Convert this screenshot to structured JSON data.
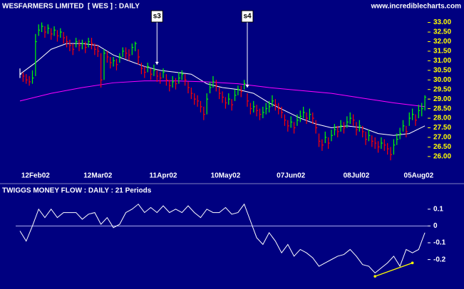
{
  "chart_data": [
    {
      "type": "ohlc",
      "title": "WESFARMERS LIMITED  [ WES ] : DAILY",
      "source": "www.incrediblecharts.com",
      "up_color": "#00ff00",
      "down_color": "#ff0000",
      "flat_color": "#ffffff",
      "categories": [
        null,
        null,
        null,
        null,
        null,
        "12Feb02",
        null,
        null,
        null,
        null,
        null,
        null,
        null,
        null,
        null,
        null,
        null,
        null,
        null,
        null,
        null,
        null,
        null,
        null,
        null,
        "12Mar02",
        null,
        null,
        null,
        null,
        null,
        null,
        null,
        null,
        null,
        null,
        null,
        null,
        null,
        null,
        null,
        null,
        null,
        null,
        null,
        null,
        "11Apr02",
        null,
        null,
        null,
        null,
        null,
        null,
        null,
        null,
        null,
        null,
        null,
        null,
        null,
        null,
        null,
        null,
        null,
        null,
        null,
        "10May02",
        null,
        null,
        null,
        null,
        null,
        null,
        null,
        null,
        null,
        null,
        null,
        null,
        null,
        null,
        null,
        null,
        null,
        null,
        null,
        null,
        "07Jun02",
        null,
        null,
        null,
        null,
        null,
        null,
        null,
        null,
        null,
        null,
        null,
        null,
        null,
        null,
        null,
        null,
        null,
        null,
        null,
        null,
        "08Jul02",
        null,
        null,
        null,
        null,
        null,
        null,
        null,
        null,
        null,
        null,
        null,
        null,
        null,
        null,
        null,
        null,
        null,
        null,
        null,
        "05Aug02",
        null,
        null
      ],
      "high": [
        30.6,
        30.4,
        30.3,
        30.2,
        30.5,
        32.4,
        32.9,
        33.0,
        32.8,
        32.9,
        32.7,
        32.8,
        32.6,
        32.7,
        32.5,
        32.3,
        32.1,
        31.9,
        32.2,
        32.1,
        32.1,
        32.0,
        32.2,
        32.2,
        31.9,
        31.8,
        31.4,
        31.6,
        31.5,
        31.2,
        31.2,
        31.1,
        31.4,
        31.7,
        31.7,
        31.6,
        31.9,
        32.0,
        31.6,
        30.9,
        30.7,
        30.9,
        30.6,
        30.8,
        30.5,
        30.4,
        30.6,
        30.3,
        30.0,
        30.2,
        30.1,
        30.4,
        30.5,
        30.3,
        29.9,
        29.6,
        29.3,
        29.2,
        28.9,
        28.6,
        29.3,
        29.9,
        30.2,
        30.0,
        29.6,
        29.4,
        29.1,
        29.3,
        29.0,
        29.5,
        29.7,
        29.7,
        30.0,
        29.3,
        28.8,
        28.9,
        28.7,
        28.5,
        28.6,
        28.8,
        28.9,
        29.2,
        29.0,
        28.8,
        28.6,
        28.2,
        27.9,
        28.1,
        27.8,
        28.2,
        28.4,
        28.6,
        28.3,
        28.5,
        28.3,
        27.9,
        27.2,
        26.9,
        27.3,
        27.0,
        27.4,
        27.7,
        27.6,
        27.9,
        27.8,
        28.1,
        28.3,
        28.2,
        27.8,
        27.9,
        27.6,
        27.3,
        27.4,
        27.1,
        27.0,
        26.8,
        27.0,
        26.9,
        26.7,
        26.5,
        26.9,
        27.2,
        27.5,
        27.9,
        27.6,
        28.3,
        28.5,
        28.2,
        28.7,
        28.8,
        29.2
      ],
      "low": [
        30.1,
        29.9,
        29.8,
        29.7,
        29.8,
        30.2,
        32.3,
        32.5,
        32.2,
        32.4,
        32.1,
        32.3,
        32.0,
        32.2,
        31.9,
        31.7,
        31.5,
        31.3,
        31.7,
        31.5,
        31.6,
        31.4,
        31.7,
        31.6,
        31.3,
        31.2,
        29.6,
        30.0,
        30.9,
        30.6,
        30.7,
        30.5,
        30.9,
        31.2,
        31.1,
        31.0,
        31.3,
        31.5,
        30.8,
        30.3,
        30.1,
        30.4,
        30.0,
        30.2,
        29.9,
        29.8,
        30.1,
        29.7,
        29.4,
        29.6,
        29.5,
        29.8,
        30.0,
        29.7,
        29.3,
        29.0,
        28.7,
        28.6,
        28.3,
        27.9,
        28.2,
        29.3,
        29.6,
        29.4,
        29.0,
        28.8,
        28.5,
        28.7,
        28.4,
        28.9,
        29.2,
        29.1,
        29.5,
        28.6,
        28.2,
        28.3,
        28.1,
        27.9,
        28.0,
        28.2,
        28.3,
        28.6,
        28.4,
        28.2,
        28.0,
        27.6,
        27.3,
        27.5,
        27.2,
        27.6,
        27.8,
        28.0,
        27.7,
        27.9,
        27.7,
        27.2,
        26.5,
        26.3,
        26.7,
        26.4,
        26.8,
        27.1,
        27.0,
        27.3,
        27.2,
        27.5,
        27.7,
        27.6,
        27.1,
        27.3,
        27.0,
        26.6,
        26.8,
        26.5,
        26.4,
        26.2,
        26.4,
        26.3,
        26.1,
        25.8,
        26.1,
        26.6,
        26.9,
        27.3,
        27.0,
        27.6,
        27.9,
        27.6,
        28.0,
        28.1,
        28.4
      ],
      "close": [
        30.3,
        30.2,
        30.0,
        29.9,
        30.1,
        32.0,
        32.6,
        32.8,
        32.5,
        32.7,
        32.4,
        32.6,
        32.3,
        32.5,
        32.2,
        32.0,
        31.8,
        31.6,
        32.0,
        31.8,
        31.9,
        31.7,
        32.0,
        31.9,
        31.6,
        31.5,
        30.0,
        31.4,
        31.2,
        30.9,
        31.0,
        30.8,
        31.2,
        31.5,
        31.4,
        31.3,
        31.7,
        31.9,
        31.2,
        30.6,
        30.4,
        30.7,
        30.3,
        30.5,
        30.2,
        30.1,
        30.4,
        30.0,
        29.7,
        29.9,
        29.8,
        30.1,
        30.3,
        30.0,
        29.6,
        29.3,
        29.0,
        28.9,
        28.6,
        28.2,
        29.0,
        29.6,
        29.9,
        29.7,
        29.3,
        29.1,
        28.8,
        29.0,
        28.7,
        29.2,
        29.5,
        29.4,
        29.8,
        28.9,
        28.5,
        28.6,
        28.4,
        28.2,
        28.3,
        28.5,
        28.6,
        28.9,
        28.7,
        28.5,
        28.3,
        27.9,
        27.6,
        27.8,
        27.5,
        27.9,
        28.1,
        28.3,
        28.0,
        28.2,
        28.0,
        27.5,
        26.8,
        26.6,
        27.0,
        26.7,
        27.1,
        27.4,
        27.3,
        27.6,
        27.5,
        27.8,
        28.0,
        27.9,
        27.4,
        27.6,
        27.3,
        26.9,
        27.1,
        26.8,
        26.7,
        26.5,
        26.7,
        26.6,
        26.4,
        26.1,
        26.6,
        26.9,
        27.2,
        27.6,
        27.3,
        28.0,
        28.2,
        27.9,
        28.4,
        28.5,
        29.1
      ],
      "overlays": [
        {
          "color": "#ffffff",
          "x": [
            0,
            5,
            10,
            15,
            20,
            25,
            30,
            35,
            40,
            45,
            50,
            55,
            60,
            65,
            70,
            75,
            80,
            85,
            90,
            95,
            100,
            105,
            110,
            115,
            120,
            125,
            130
          ],
          "values": [
            30.3,
            30.9,
            31.6,
            31.9,
            31.9,
            31.8,
            31.3,
            31.0,
            30.7,
            30.5,
            30.4,
            30.3,
            29.8,
            29.6,
            29.5,
            29.3,
            28.8,
            28.4,
            28.0,
            27.7,
            27.5,
            27.6,
            27.5,
            27.2,
            27.1,
            27.2,
            27.6
          ]
        },
        {
          "color": "#ff00ff",
          "x": [
            0,
            10,
            20,
            30,
            40,
            50,
            60,
            70,
            80,
            90,
            100,
            110,
            120,
            130
          ],
          "values": [
            28.9,
            29.3,
            29.6,
            29.85,
            29.95,
            29.95,
            29.9,
            29.8,
            29.6,
            29.45,
            29.3,
            29.05,
            28.8,
            28.6
          ]
        }
      ],
      "annotations": [
        {
          "text": "s3",
          "x": 44
        },
        {
          "text": "s4",
          "x": 73
        }
      ],
      "ylim": [
        25.4,
        34.1
      ],
      "yticks": [
        {
          "value": 26,
          "label": "26.00"
        },
        {
          "value": 26.5,
          "label": "26.50"
        },
        {
          "value": 27,
          "label": "27.00"
        },
        {
          "value": 27.5,
          "label": "27.50"
        },
        {
          "value": 28,
          "label": "28.00"
        },
        {
          "value": 28.5,
          "label": "28.50"
        },
        {
          "value": 29,
          "label": "29.00"
        },
        {
          "value": 29.5,
          "label": "29.50"
        },
        {
          "value": 30,
          "label": "30.00"
        },
        {
          "value": 30.5,
          "label": "30.50"
        },
        {
          "value": 31,
          "label": "31.00"
        },
        {
          "value": 31.5,
          "label": "31.50"
        },
        {
          "value": 32,
          "label": "32.00"
        },
        {
          "value": 32.5,
          "label": "32.50"
        },
        {
          "value": 33,
          "label": "33.00"
        }
      ]
    },
    {
      "type": "line",
      "title": "TWIGGS MONEY FLOW : DAILY : 21 Periods",
      "color": "#ffffff",
      "x": [
        0,
        2,
        4,
        6,
        8,
        10,
        12,
        14,
        16,
        18,
        20,
        22,
        24,
        26,
        28,
        30,
        32,
        34,
        36,
        38,
        40,
        42,
        44,
        46,
        48,
        50,
        52,
        54,
        56,
        58,
        60,
        62,
        64,
        66,
        68,
        70,
        72,
        74,
        76,
        78,
        80,
        82,
        84,
        86,
        88,
        90,
        92,
        94,
        96,
        98,
        100,
        102,
        104,
        106,
        108,
        110,
        112,
        114,
        116,
        118,
        120,
        122,
        124,
        126,
        128,
        130
      ],
      "values": [
        -0.03,
        -0.09,
        0,
        0.1,
        0.05,
        0.1,
        0.05,
        0.08,
        0.08,
        0.08,
        0.04,
        0.07,
        0.08,
        0.01,
        0.05,
        -0.01,
        0.01,
        0.08,
        0.1,
        0.13,
        0.08,
        0.11,
        0.08,
        0.12,
        0.08,
        0.1,
        0.08,
        0.12,
        0.08,
        0.05,
        0.1,
        0.08,
        0.08,
        0.11,
        0.07,
        0.08,
        0.13,
        0.03,
        -0.07,
        -0.11,
        -0.04,
        -0.09,
        -0.16,
        -0.11,
        -0.18,
        -0.14,
        -0.16,
        -0.19,
        -0.24,
        -0.22,
        -0.2,
        -0.18,
        -0.17,
        -0.14,
        -0.18,
        -0.23,
        -0.24,
        -0.28,
        -0.25,
        -0.22,
        -0.18,
        -0.24,
        -0.14,
        -0.16,
        -0.14,
        -0.04
      ],
      "zero_line": true,
      "trendline": {
        "color": "#ffff00",
        "x": [
          114,
          126
        ],
        "values": [
          -0.3,
          -0.22
        ]
      },
      "ylim": [
        -0.35,
        0.18
      ],
      "yticks": [
        0.1,
        0,
        -0.1,
        -0.2
      ]
    }
  ]
}
